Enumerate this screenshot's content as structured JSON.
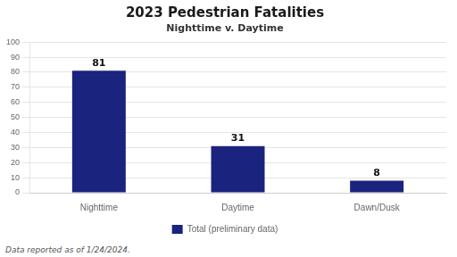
{
  "chart_data": {
    "type": "bar",
    "title": "2023 Pedestrian Fatalities",
    "subtitle": "Nighttime v. Daytime",
    "categories": [
      "Nighttime",
      "Daytime",
      "Dawn/Dusk"
    ],
    "series": [
      {
        "name": "Total (preliminary data)",
        "color": "#1a237e",
        "values": [
          81,
          31,
          8
        ]
      }
    ],
    "ylim": [
      0,
      100
    ],
    "yticks": [
      0,
      10,
      20,
      30,
      40,
      50,
      60,
      70,
      80,
      90,
      100
    ],
    "grid": true,
    "data_labels": true,
    "legend": "bottom",
    "footnote": "Data reported as of 1/24/2024."
  }
}
